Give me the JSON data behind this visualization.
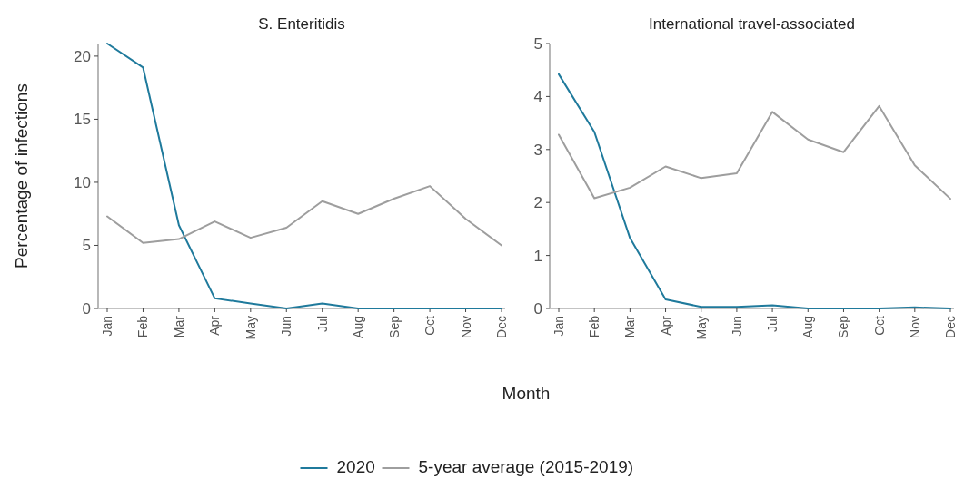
{
  "chart_data": [
    {
      "type": "line",
      "title": "S. Enteritidis",
      "ylabel": "Percentage of infections",
      "xlabel": "Month",
      "legend": "bottom",
      "categories": [
        "Jan",
        "Feb",
        "Mar",
        "Apr",
        "May",
        "Jun",
        "Jul",
        "Aug",
        "Sep",
        "Oct",
        "Nov",
        "Dec"
      ],
      "ylim": [
        0,
        21
      ],
      "yticks": [
        0,
        5,
        10,
        15,
        20
      ],
      "grid": false,
      "series": [
        {
          "name": "2020",
          "color": "#1f7a9c",
          "values": [
            21,
            19.1,
            6.6,
            0.8,
            0.4,
            0,
            0.4,
            0,
            0,
            0,
            0,
            0
          ]
        },
        {
          "name": "5-year average (2015-2019)",
          "color": "#9e9e9e",
          "values": [
            7.3,
            5.2,
            5.5,
            6.9,
            5.6,
            6.4,
            8.5,
            7.5,
            8.7,
            9.7,
            7.1,
            5.0
          ]
        }
      ]
    },
    {
      "type": "line",
      "title": "International travel-associated",
      "categories": [
        "Jan",
        "Feb",
        "Mar",
        "Apr",
        "May",
        "Jun",
        "Jul",
        "Aug",
        "Sep",
        "Oct",
        "Nov",
        "Dec"
      ],
      "ylim": [
        0,
        5
      ],
      "yticks": [
        0,
        1,
        2,
        3,
        4,
        5
      ],
      "grid": false,
      "series": [
        {
          "color": "#1f7a9c",
          "values": [
            4.42,
            3.33,
            1.33,
            0.17,
            0.03,
            0.03,
            0.06,
            0,
            0,
            0,
            0.02,
            0
          ]
        },
        {
          "color": "#9e9e9e",
          "values": [
            3.28,
            2.08,
            2.28,
            2.68,
            2.46,
            2.55,
            3.71,
            3.19,
            2.95,
            3.82,
            2.7,
            2.07
          ]
        }
      ]
    }
  ]
}
